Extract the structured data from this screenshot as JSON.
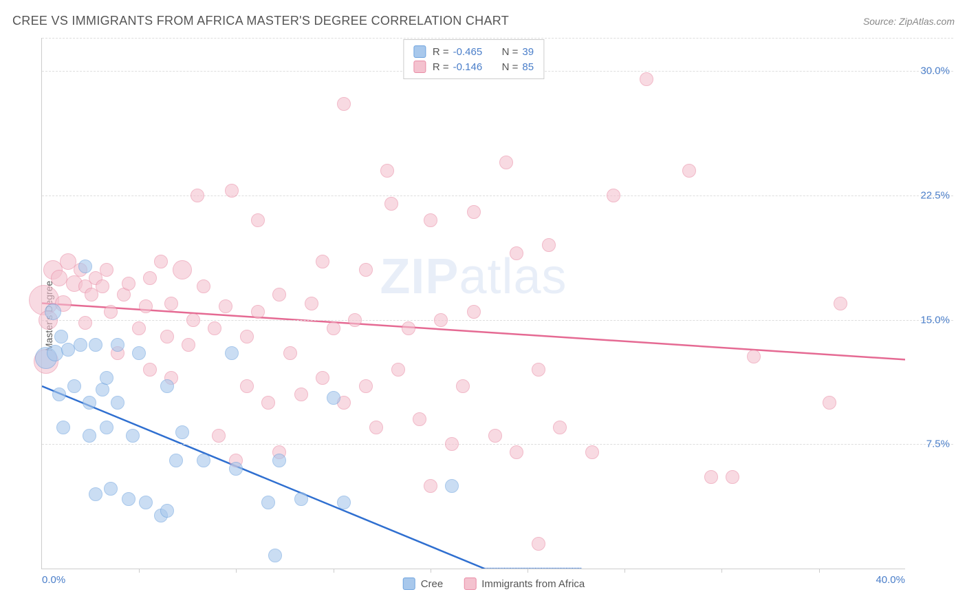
{
  "header": {
    "title": "CREE VS IMMIGRANTS FROM AFRICA MASTER'S DEGREE CORRELATION CHART",
    "source": "Source: ZipAtlas.com"
  },
  "watermark": {
    "zip": "ZIP",
    "atlas": "atlas"
  },
  "chart": {
    "type": "scatter",
    "ylabel": "Master's Degree",
    "background_color": "#ffffff",
    "grid_color": "#dddddd",
    "axis_color": "#cccccc",
    "tick_label_color": "#4a7ec9",
    "xlim": [
      0,
      40
    ],
    "ylim": [
      0,
      32
    ],
    "xticks": [
      {
        "pos": 0,
        "label": "0.0%"
      },
      {
        "pos": 40,
        "label": "40.0%"
      }
    ],
    "xtick_marks": [
      4.5,
      9,
      13.5,
      18,
      22.5,
      27,
      31.5,
      36
    ],
    "yticks": [
      {
        "pos": 7.5,
        "label": "7.5%"
      },
      {
        "pos": 15.0,
        "label": "15.0%"
      },
      {
        "pos": 22.5,
        "label": "22.5%"
      },
      {
        "pos": 30.0,
        "label": "30.0%"
      }
    ],
    "gridlines_y": [
      7.5,
      15.0,
      22.5,
      30.0,
      32.0
    ],
    "series": [
      {
        "name": "Cree",
        "label": "Cree",
        "fill": "#a8c8ec",
        "stroke": "#6ea3de",
        "trend_color": "#2f6fd0",
        "marker_radius": 10,
        "trend": {
          "x1": 0,
          "y1": 11.0,
          "x2": 20.5,
          "y2": 0.0,
          "dash_after": true,
          "x2_dash": 25
        },
        "stats": {
          "R": "-0.465",
          "N": "39"
        },
        "points": [
          {
            "x": 0.2,
            "y": 12.7,
            "r": 16
          },
          {
            "x": 0.5,
            "y": 15.5,
            "r": 12
          },
          {
            "x": 0.6,
            "y": 13.0,
            "r": 12
          },
          {
            "x": 0.8,
            "y": 10.5,
            "r": 10
          },
          {
            "x": 0.9,
            "y": 14.0,
            "r": 10
          },
          {
            "x": 1.2,
            "y": 13.2,
            "r": 10
          },
          {
            "x": 1.0,
            "y": 8.5,
            "r": 10
          },
          {
            "x": 1.5,
            "y": 11.0,
            "r": 10
          },
          {
            "x": 1.8,
            "y": 13.5,
            "r": 10
          },
          {
            "x": 2.0,
            "y": 18.2,
            "r": 10
          },
          {
            "x": 2.2,
            "y": 10.0,
            "r": 10
          },
          {
            "x": 2.2,
            "y": 8.0,
            "r": 10
          },
          {
            "x": 2.5,
            "y": 13.5,
            "r": 10
          },
          {
            "x": 2.5,
            "y": 4.5,
            "r": 10
          },
          {
            "x": 2.8,
            "y": 10.8,
            "r": 10
          },
          {
            "x": 3.0,
            "y": 8.5,
            "r": 10
          },
          {
            "x": 3.0,
            "y": 11.5,
            "r": 10
          },
          {
            "x": 3.2,
            "y": 4.8,
            "r": 10
          },
          {
            "x": 3.5,
            "y": 13.5,
            "r": 10
          },
          {
            "x": 3.5,
            "y": 10.0,
            "r": 10
          },
          {
            "x": 4.0,
            "y": 4.2,
            "r": 10
          },
          {
            "x": 4.2,
            "y": 8.0,
            "r": 10
          },
          {
            "x": 4.5,
            "y": 13.0,
            "r": 10
          },
          {
            "x": 4.8,
            "y": 4.0,
            "r": 10
          },
          {
            "x": 5.5,
            "y": 3.2,
            "r": 10
          },
          {
            "x": 5.8,
            "y": 11.0,
            "r": 10
          },
          {
            "x": 5.8,
            "y": 3.5,
            "r": 10
          },
          {
            "x": 6.2,
            "y": 6.5,
            "r": 10
          },
          {
            "x": 6.5,
            "y": 8.2,
            "r": 10
          },
          {
            "x": 7.5,
            "y": 6.5,
            "r": 10
          },
          {
            "x": 8.8,
            "y": 13.0,
            "r": 10
          },
          {
            "x": 9.0,
            "y": 6.0,
            "r": 10
          },
          {
            "x": 10.5,
            "y": 4.0,
            "r": 10
          },
          {
            "x": 10.8,
            "y": 0.8,
            "r": 10
          },
          {
            "x": 11.0,
            "y": 6.5,
            "r": 10
          },
          {
            "x": 12.0,
            "y": 4.2,
            "r": 10
          },
          {
            "x": 13.5,
            "y": 10.3,
            "r": 10
          },
          {
            "x": 14.0,
            "y": 4.0,
            "r": 10
          },
          {
            "x": 19.0,
            "y": 5.0,
            "r": 10
          }
        ]
      },
      {
        "name": "Immigrants from Africa",
        "label": "Immigrants from Africa",
        "fill": "#f4c2cf",
        "stroke": "#e98ba5",
        "trend_color": "#e56a93",
        "marker_radius": 10,
        "trend": {
          "x1": 0,
          "y1": 16.0,
          "x2": 40,
          "y2": 12.6,
          "dash_after": false
        },
        "stats": {
          "R": "-0.146",
          "N": "85"
        },
        "points": [
          {
            "x": 0.1,
            "y": 16.2,
            "r": 22
          },
          {
            "x": 0.2,
            "y": 12.5,
            "r": 18
          },
          {
            "x": 0.3,
            "y": 15.0,
            "r": 14
          },
          {
            "x": 0.5,
            "y": 18.0,
            "r": 14
          },
          {
            "x": 0.8,
            "y": 17.5,
            "r": 12
          },
          {
            "x": 1.0,
            "y": 16.0,
            "r": 12
          },
          {
            "x": 1.2,
            "y": 18.5,
            "r": 12
          },
          {
            "x": 1.5,
            "y": 17.2,
            "r": 12
          },
          {
            "x": 1.8,
            "y": 18.0,
            "r": 10
          },
          {
            "x": 2.0,
            "y": 14.8,
            "r": 10
          },
          {
            "x": 2.0,
            "y": 17.0,
            "r": 10
          },
          {
            "x": 2.3,
            "y": 16.5,
            "r": 10
          },
          {
            "x": 2.5,
            "y": 17.5,
            "r": 10
          },
          {
            "x": 2.8,
            "y": 17.0,
            "r": 10
          },
          {
            "x": 3.0,
            "y": 18.0,
            "r": 10
          },
          {
            "x": 3.2,
            "y": 15.5,
            "r": 10
          },
          {
            "x": 3.5,
            "y": 13.0,
            "r": 10
          },
          {
            "x": 3.8,
            "y": 16.5,
            "r": 10
          },
          {
            "x": 4.0,
            "y": 17.2,
            "r": 10
          },
          {
            "x": 4.5,
            "y": 14.5,
            "r": 10
          },
          {
            "x": 4.8,
            "y": 15.8,
            "r": 10
          },
          {
            "x": 5.0,
            "y": 17.5,
            "r": 10
          },
          {
            "x": 5.0,
            "y": 12.0,
            "r": 10
          },
          {
            "x": 5.5,
            "y": 18.5,
            "r": 10
          },
          {
            "x": 5.8,
            "y": 14.0,
            "r": 10
          },
          {
            "x": 6.0,
            "y": 16.0,
            "r": 10
          },
          {
            "x": 6.0,
            "y": 11.5,
            "r": 10
          },
          {
            "x": 6.5,
            "y": 18.0,
            "r": 14
          },
          {
            "x": 6.8,
            "y": 13.5,
            "r": 10
          },
          {
            "x": 7.0,
            "y": 15.0,
            "r": 10
          },
          {
            "x": 7.2,
            "y": 22.5,
            "r": 10
          },
          {
            "x": 7.5,
            "y": 17.0,
            "r": 10
          },
          {
            "x": 8.0,
            "y": 14.5,
            "r": 10
          },
          {
            "x": 8.2,
            "y": 8.0,
            "r": 10
          },
          {
            "x": 8.5,
            "y": 15.8,
            "r": 10
          },
          {
            "x": 8.8,
            "y": 22.8,
            "r": 10
          },
          {
            "x": 9.0,
            "y": 6.5,
            "r": 10
          },
          {
            "x": 9.5,
            "y": 14.0,
            "r": 10
          },
          {
            "x": 9.5,
            "y": 11.0,
            "r": 10
          },
          {
            "x": 10.0,
            "y": 21.0,
            "r": 10
          },
          {
            "x": 10.0,
            "y": 15.5,
            "r": 10
          },
          {
            "x": 10.5,
            "y": 10.0,
            "r": 10
          },
          {
            "x": 11.0,
            "y": 16.5,
            "r": 10
          },
          {
            "x": 11.0,
            "y": 7.0,
            "r": 10
          },
          {
            "x": 11.5,
            "y": 13.0,
            "r": 10
          },
          {
            "x": 12.0,
            "y": 10.5,
            "r": 10
          },
          {
            "x": 12.5,
            "y": 16.0,
            "r": 10
          },
          {
            "x": 13.0,
            "y": 18.5,
            "r": 10
          },
          {
            "x": 13.0,
            "y": 11.5,
            "r": 10
          },
          {
            "x": 13.5,
            "y": 14.5,
            "r": 10
          },
          {
            "x": 14.0,
            "y": 10.0,
            "r": 10
          },
          {
            "x": 14.0,
            "y": 28.0,
            "r": 10
          },
          {
            "x": 14.5,
            "y": 15.0,
            "r": 10
          },
          {
            "x": 15.0,
            "y": 11.0,
            "r": 10
          },
          {
            "x": 15.0,
            "y": 18.0,
            "r": 10
          },
          {
            "x": 15.5,
            "y": 8.5,
            "r": 10
          },
          {
            "x": 16.0,
            "y": 24.0,
            "r": 10
          },
          {
            "x": 16.2,
            "y": 22.0,
            "r": 10
          },
          {
            "x": 16.5,
            "y": 12.0,
            "r": 10
          },
          {
            "x": 17.0,
            "y": 14.5,
            "r": 10
          },
          {
            "x": 17.5,
            "y": 9.0,
            "r": 10
          },
          {
            "x": 18.0,
            "y": 21.0,
            "r": 10
          },
          {
            "x": 18.0,
            "y": 5.0,
            "r": 10
          },
          {
            "x": 18.5,
            "y": 15.0,
            "r": 10
          },
          {
            "x": 19.0,
            "y": 7.5,
            "r": 10
          },
          {
            "x": 19.5,
            "y": 11.0,
            "r": 10
          },
          {
            "x": 20.0,
            "y": 21.5,
            "r": 10
          },
          {
            "x": 20.0,
            "y": 15.5,
            "r": 10
          },
          {
            "x": 21.0,
            "y": 8.0,
            "r": 10
          },
          {
            "x": 21.5,
            "y": 24.5,
            "r": 10
          },
          {
            "x": 22.0,
            "y": 7.0,
            "r": 10
          },
          {
            "x": 22.0,
            "y": 19.0,
            "r": 10
          },
          {
            "x": 23.0,
            "y": 12.0,
            "r": 10
          },
          {
            "x": 23.0,
            "y": 1.5,
            "r": 10
          },
          {
            "x": 23.5,
            "y": 19.5,
            "r": 10
          },
          {
            "x": 24.0,
            "y": 8.5,
            "r": 10
          },
          {
            "x": 25.5,
            "y": 7.0,
            "r": 10
          },
          {
            "x": 26.5,
            "y": 22.5,
            "r": 10
          },
          {
            "x": 28.0,
            "y": 29.5,
            "r": 10
          },
          {
            "x": 30.0,
            "y": 24.0,
            "r": 10
          },
          {
            "x": 31.0,
            "y": 5.5,
            "r": 10
          },
          {
            "x": 32.0,
            "y": 5.5,
            "r": 10
          },
          {
            "x": 33.0,
            "y": 12.8,
            "r": 10
          },
          {
            "x": 36.5,
            "y": 10.0,
            "r": 10
          },
          {
            "x": 37.0,
            "y": 16.0,
            "r": 10
          }
        ]
      }
    ],
    "legend_labels": {
      "r": "R =",
      "n": "N ="
    }
  }
}
